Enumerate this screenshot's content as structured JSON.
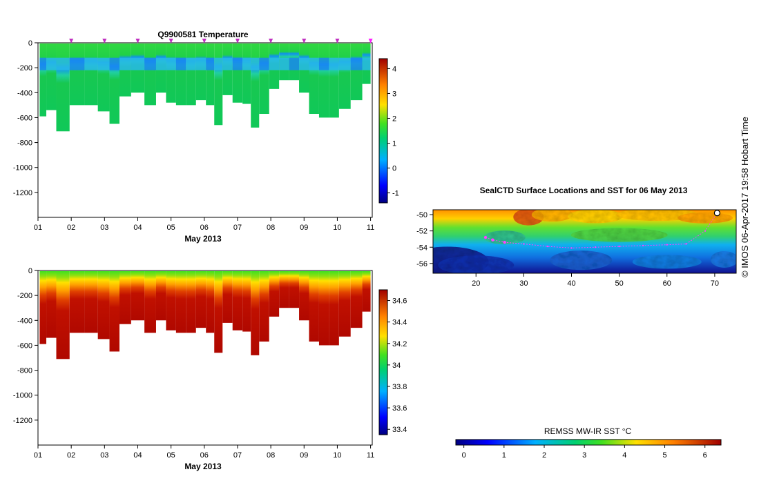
{
  "temp_title": "Q9900581  Temperature",
  "map_title": "SealCTD Surface Locations and SST for 06 May 2013",
  "credit": "© IMOS 06-Apr-2017 19:58 Hobart Time",
  "colors": {
    "blue": "#2030e0",
    "magenta": "#ff20ff",
    "pink_track": "#ff40ff"
  },
  "chart_data": [
    {
      "type": "heatmap",
      "name": "temperature-section",
      "title": "Q9900581  Temperature",
      "xlabel": "May 2013",
      "xlim": [
        1,
        11.05
      ],
      "ylim": [
        -1400,
        0
      ],
      "xticks": [
        1,
        2,
        3,
        4,
        5,
        6,
        7,
        8,
        9,
        10,
        11
      ],
      "xtick_labels": [
        "01",
        "02",
        "03",
        "04",
        "05",
        "06",
        "07",
        "08",
        "09",
        "10",
        "11"
      ],
      "yticks": [
        0,
        -200,
        -400,
        -600,
        -800,
        -1000,
        -1200
      ],
      "ytick_labels": [
        "0",
        "-200",
        "-400",
        "-600",
        "-800",
        "-1000",
        "-1200"
      ],
      "colorbar": {
        "min": -1.4,
        "max": 4.4,
        "ticks": [
          -1,
          0,
          1,
          2,
          3,
          4
        ],
        "tick_labels": [
          "-1",
          "0",
          "1",
          "2",
          "3",
          "4"
        ]
      },
      "surface_markers_x": [
        2.0,
        3.0,
        4.0,
        5.0,
        6.0,
        7.0,
        8.0,
        9.0,
        10.0,
        11.0
      ],
      "profile_x": [
        1.1,
        1.4,
        1.7,
        2.2,
        2.6,
        3.0,
        3.3,
        3.6,
        4.0,
        4.4,
        4.7,
        5.0,
        5.3,
        5.6,
        5.9,
        6.2,
        6.4,
        6.7,
        7.0,
        7.3,
        7.5,
        7.8,
        8.1,
        8.4,
        8.7,
        9.0,
        9.3,
        9.6,
        9.9,
        10.2,
        10.6,
        10.9
      ],
      "profile_depths": [
        590,
        540,
        710,
        500,
        500,
        550,
        650,
        430,
        400,
        500,
        400,
        480,
        500,
        500,
        460,
        500,
        660,
        420,
        480,
        490,
        680,
        570,
        370,
        300,
        300,
        400,
        570,
        600,
        600,
        530,
        460,
        330
      ]
    },
    {
      "type": "heatmap",
      "name": "salinity-section",
      "title": "",
      "xlabel": "May 2013",
      "xlim": [
        1,
        11.05
      ],
      "ylim": [
        -1400,
        0
      ],
      "xticks": [
        1,
        2,
        3,
        4,
        5,
        6,
        7,
        8,
        9,
        10,
        11
      ],
      "xtick_labels": [
        "01",
        "02",
        "03",
        "04",
        "05",
        "06",
        "07",
        "08",
        "09",
        "10",
        "11"
      ],
      "yticks": [
        0,
        -200,
        -400,
        -600,
        -800,
        -1000,
        -1200
      ],
      "ytick_labels": [
        "0",
        "-200",
        "-400",
        "-600",
        "-800",
        "-1000",
        "-1200"
      ],
      "colorbar": {
        "min": 33.35,
        "max": 34.7,
        "ticks": [
          33.4,
          33.6,
          33.8,
          34,
          34.2,
          34.4,
          34.6
        ],
        "tick_labels": [
          "33.4",
          "33.6",
          "33.8",
          "34",
          "34.2",
          "34.4",
          "34.6"
        ]
      }
    },
    {
      "type": "heatmap",
      "name": "sst-map",
      "title": "SealCTD Surface Locations and SST for 06 May 2013",
      "xlim": [
        11,
        74.5
      ],
      "ylim": [
        -57.2,
        -49.4
      ],
      "xticks": [
        20,
        30,
        40,
        50,
        60,
        70
      ],
      "xtick_labels": [
        "20",
        "30",
        "40",
        "50",
        "60",
        "70"
      ],
      "yticks": [
        -50,
        -52,
        -54,
        -56
      ],
      "ytick_labels": [
        "-50",
        "-52",
        "-54",
        "-56"
      ],
      "track": [
        [
          22.0,
          -52.8
        ],
        [
          23.5,
          -53.1
        ],
        [
          26.0,
          -53.4
        ],
        [
          30.0,
          -53.6
        ],
        [
          35.0,
          -53.9
        ],
        [
          40.0,
          -54.1
        ],
        [
          45.0,
          -54.0
        ],
        [
          50.0,
          -53.9
        ],
        [
          55.0,
          -53.8
        ],
        [
          60.0,
          -53.7
        ],
        [
          64.0,
          -53.6
        ],
        [
          68.0,
          -52.0
        ],
        [
          70.5,
          -49.8
        ]
      ],
      "colorbar": {
        "label": "REMSS MW-IR SST °C",
        "min": -0.2,
        "max": 6.4,
        "ticks": [
          0,
          1,
          2,
          3,
          4,
          5,
          6
        ],
        "tick_labels": [
          "0",
          "1",
          "2",
          "3",
          "4",
          "5",
          "6"
        ]
      }
    }
  ]
}
